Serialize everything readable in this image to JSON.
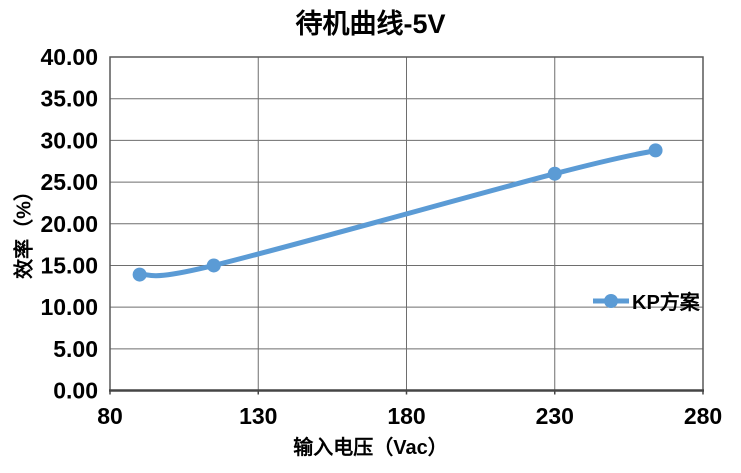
{
  "chart_data": {
    "type": "line",
    "title": "待机曲线-5V",
    "xlabel": "输入电压（Vac）",
    "ylabel": "效率（%）",
    "x": [
      90,
      115,
      230,
      264
    ],
    "series": [
      {
        "name": "KP方案",
        "color": "#5B9BD5",
        "values": [
          13.9,
          15.0,
          26.0,
          28.8
        ]
      }
    ],
    "xlim": [
      80,
      280
    ],
    "ylim": [
      0,
      40
    ],
    "x_ticks": [
      80,
      130,
      180,
      230,
      280
    ],
    "y_ticks": [
      0,
      5,
      10,
      15,
      20,
      25,
      30,
      35,
      40
    ],
    "y_tick_labels": [
      "0.00",
      "5.00",
      "10.00",
      "15.00",
      "20.00",
      "25.00",
      "30.00",
      "35.00",
      "40.00"
    ],
    "grid": true,
    "smooth": true,
    "marker": "circle",
    "legend_position": "inside-right",
    "colors": {
      "background": "#FFFFFF",
      "text": "#000000",
      "gridline": "#6E6E6E",
      "plot_border": "#595959",
      "axis_line": "#454545",
      "series": "#5B9BD5"
    }
  }
}
